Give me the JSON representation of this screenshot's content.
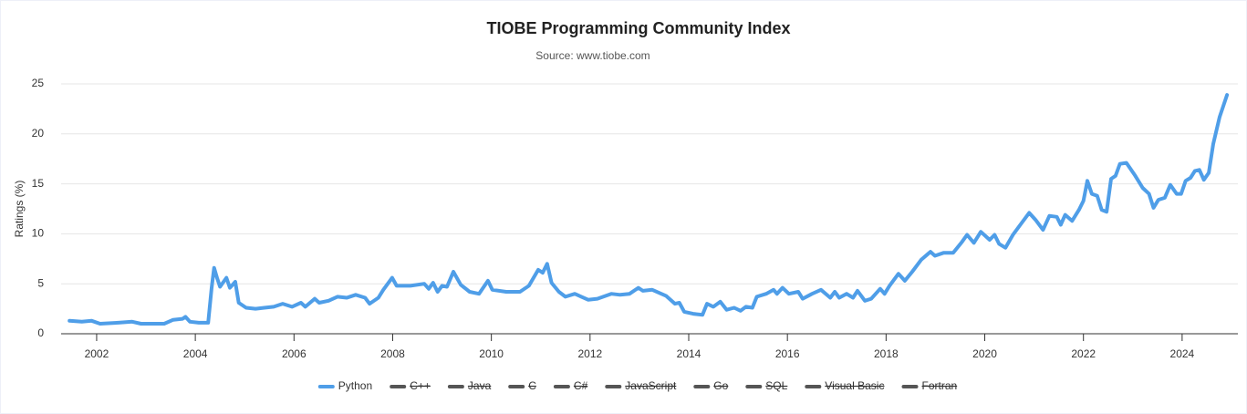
{
  "chart_data": {
    "type": "line",
    "title": "TIOBE Programming Community Index",
    "subtitle": "Source: www.tiobe.com",
    "y_label": "Ratings (%)",
    "x": [
      2001.45,
      2001.7,
      2001.9,
      2002.07,
      2002.44,
      2002.72,
      2002.9,
      2003.37,
      2003.55,
      2003.74,
      2003.8,
      2003.89,
      2004.07,
      2004.26,
      2004.33,
      2004.38,
      2004.44,
      2004.5,
      2004.63,
      2004.7,
      2004.81,
      2004.88,
      2005.03,
      2005.22,
      2005.4,
      2005.59,
      2005.77,
      2005.96,
      2006.14,
      2006.23,
      2006.42,
      2006.51,
      2006.7,
      2006.88,
      2007.07,
      2007.25,
      2007.44,
      2007.53,
      2007.71,
      2007.81,
      2007.99,
      2008.08,
      2008.36,
      2008.64,
      2008.73,
      2008.82,
      2008.91,
      2009.0,
      2009.1,
      2009.23,
      2009.38,
      2009.56,
      2009.75,
      2009.93,
      2010.02,
      2010.3,
      2010.58,
      2010.76,
      2010.95,
      2011.04,
      2011.13,
      2011.22,
      2011.37,
      2011.5,
      2011.69,
      2011.96,
      2012.15,
      2012.43,
      2012.61,
      2012.8,
      2012.98,
      2013.07,
      2013.26,
      2013.54,
      2013.72,
      2013.81,
      2013.91,
      2014.09,
      2014.28,
      2014.37,
      2014.5,
      2014.64,
      2014.77,
      2014.92,
      2015.05,
      2015.16,
      2015.29,
      2015.38,
      2015.57,
      2015.72,
      2015.79,
      2015.9,
      2016.03,
      2016.22,
      2016.31,
      2016.5,
      2016.68,
      2016.87,
      2016.96,
      2017.05,
      2017.2,
      2017.33,
      2017.42,
      2017.57,
      2017.7,
      2017.88,
      2017.97,
      2018.07,
      2018.25,
      2018.38,
      2018.53,
      2018.71,
      2018.9,
      2018.99,
      2019.17,
      2019.36,
      2019.54,
      2019.64,
      2019.78,
      2019.92,
      2020.1,
      2020.2,
      2020.29,
      2020.42,
      2020.57,
      2020.72,
      2020.9,
      2021.03,
      2021.18,
      2021.31,
      2021.46,
      2021.54,
      2021.63,
      2021.77,
      2021.91,
      2022.0,
      2022.08,
      2022.17,
      2022.28,
      2022.37,
      2022.47,
      2022.56,
      2022.65,
      2022.74,
      2022.87,
      2023.05,
      2023.2,
      2023.33,
      2023.42,
      2023.52,
      2023.65,
      2023.76,
      2023.89,
      2023.98,
      2024.07,
      2024.17,
      2024.26,
      2024.35,
      2024.44,
      2024.54,
      2024.63,
      2024.76,
      2024.91
    ],
    "series": [
      {
        "name": "Python",
        "color": "#4f9ee8",
        "visible": true,
        "values": [
          1.3,
          1.2,
          1.3,
          1.0,
          1.1,
          1.2,
          1.0,
          1.0,
          1.4,
          1.5,
          1.7,
          1.2,
          1.1,
          1.1,
          4.6,
          6.6,
          5.6,
          4.7,
          5.6,
          4.6,
          5.2,
          3.1,
          2.6,
          2.5,
          2.6,
          2.7,
          3.0,
          2.7,
          3.1,
          2.7,
          3.5,
          3.1,
          3.3,
          3.7,
          3.6,
          3.9,
          3.6,
          3.0,
          3.6,
          4.4,
          5.6,
          4.8,
          4.8,
          5.0,
          4.5,
          5.1,
          4.2,
          4.8,
          4.7,
          6.2,
          4.9,
          4.2,
          4.0,
          5.3,
          4.4,
          4.2,
          4.2,
          4.8,
          6.4,
          6.1,
          7.0,
          5.1,
          4.2,
          3.7,
          4.0,
          3.4,
          3.5,
          4.0,
          3.9,
          4.0,
          4.6,
          4.3,
          4.4,
          3.8,
          3.0,
          3.1,
          2.2,
          2.0,
          1.9,
          3.0,
          2.7,
          3.2,
          2.4,
          2.6,
          2.3,
          2.7,
          2.6,
          3.7,
          4.0,
          4.4,
          4.0,
          4.6,
          4.0,
          4.2,
          3.5,
          4.0,
          4.4,
          3.6,
          4.2,
          3.6,
          4.0,
          3.6,
          4.3,
          3.3,
          3.5,
          4.5,
          4.0,
          4.8,
          6.0,
          5.3,
          6.2,
          7.4,
          8.2,
          7.8,
          8.1,
          8.1,
          9.2,
          9.9,
          9.1,
          10.2,
          9.4,
          9.9,
          9.0,
          8.6,
          9.9,
          10.9,
          12.1,
          11.4,
          10.4,
          11.8,
          11.7,
          10.9,
          11.9,
          11.3,
          12.4,
          13.3,
          15.3,
          14.0,
          13.8,
          12.4,
          12.2,
          15.5,
          15.8,
          17.0,
          17.1,
          15.8,
          14.6,
          14.0,
          12.6,
          13.4,
          13.6,
          14.9,
          14.0,
          14.0,
          15.3,
          15.6,
          16.3,
          16.4,
          15.4,
          16.1,
          19.0,
          21.7,
          23.9
        ]
      },
      {
        "name": "C++",
        "color": "#555555",
        "visible": false
      },
      {
        "name": "Java",
        "color": "#555555",
        "visible": false
      },
      {
        "name": "C",
        "color": "#555555",
        "visible": false
      },
      {
        "name": "C#",
        "color": "#555555",
        "visible": false
      },
      {
        "name": "JavaScript",
        "color": "#555555",
        "visible": false
      },
      {
        "name": "Go",
        "color": "#555555",
        "visible": false
      },
      {
        "name": "SQL",
        "color": "#555555",
        "visible": false
      },
      {
        "name": "Visual Basic",
        "color": "#555555",
        "visible": false
      },
      {
        "name": "Fortran",
        "color": "#555555",
        "visible": false
      }
    ],
    "xlim": [
      2001.28,
      2025.13
    ],
    "xticks": [
      2002,
      2004,
      2006,
      2008,
      2010,
      2012,
      2014,
      2016,
      2018,
      2020,
      2022,
      2024
    ],
    "ylim": [
      0,
      25
    ],
    "yticks": [
      0,
      5,
      10,
      15,
      20,
      25
    ],
    "grid": true,
    "legend": "bottom"
  }
}
